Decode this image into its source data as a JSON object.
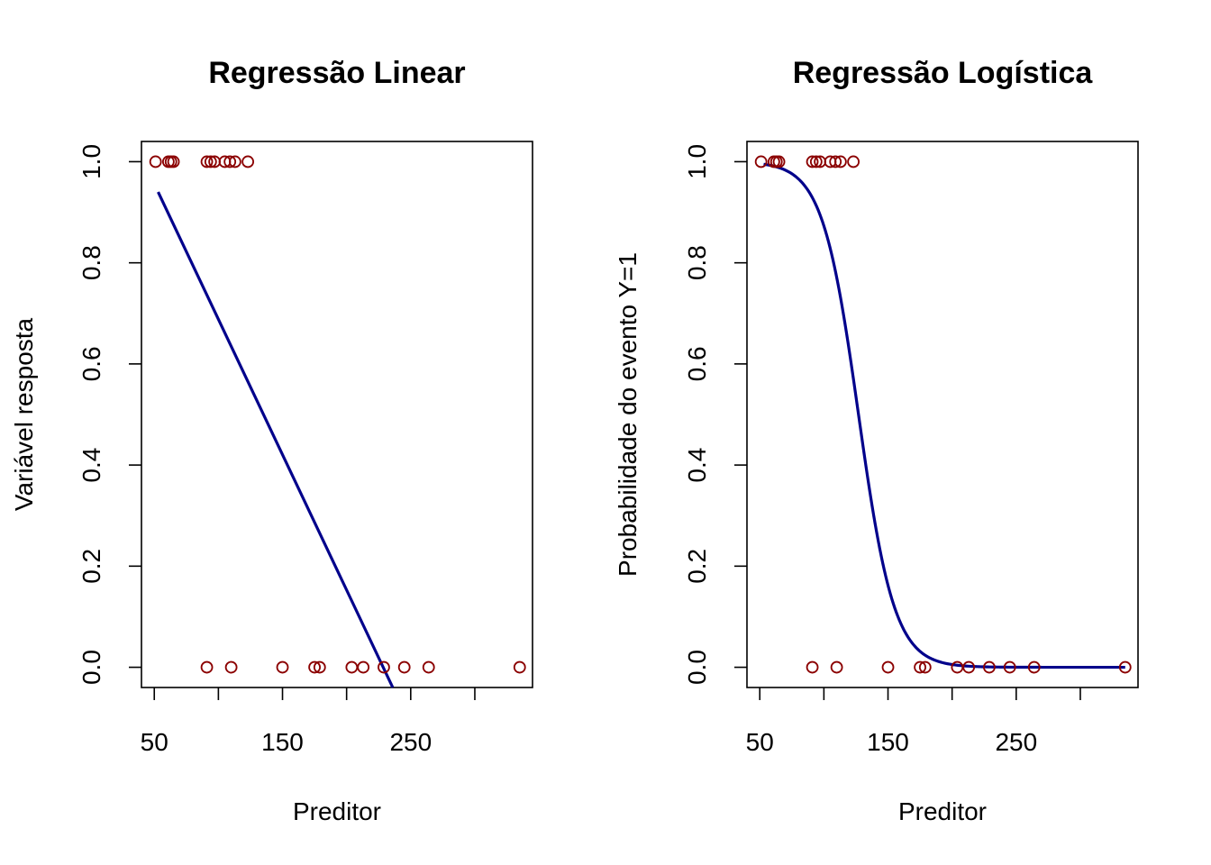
{
  "chart_data": [
    {
      "type": "scatter",
      "title": "Regressão Linear",
      "xlabel": "Preditor",
      "ylabel": "Variável resposta",
      "xlim": [
        40,
        345
      ],
      "ylim": [
        -0.04,
        1.04
      ],
      "x_ticks": [
        50,
        100,
        150,
        200,
        250,
        300
      ],
      "x_tick_labels": [
        "50",
        "",
        "150",
        "",
        "250",
        ""
      ],
      "y_ticks": [
        0.0,
        0.2,
        0.4,
        0.6,
        0.8,
        1.0
      ],
      "y_tick_labels": [
        "0.0",
        "0.2",
        "0.4",
        "0.6",
        "0.8",
        "1.0"
      ],
      "point_color": "#8b0000",
      "line_color": "#00008b",
      "points": [
        {
          "x": 51,
          "y": 1
        },
        {
          "x": 61,
          "y": 1
        },
        {
          "x": 63,
          "y": 1
        },
        {
          "x": 65,
          "y": 1
        },
        {
          "x": 91,
          "y": 1
        },
        {
          "x": 94,
          "y": 1
        },
        {
          "x": 97,
          "y": 1
        },
        {
          "x": 105,
          "y": 1
        },
        {
          "x": 109,
          "y": 1
        },
        {
          "x": 113,
          "y": 1
        },
        {
          "x": 123,
          "y": 1
        },
        {
          "x": 91,
          "y": 0
        },
        {
          "x": 110,
          "y": 0
        },
        {
          "x": 150,
          "y": 0
        },
        {
          "x": 175,
          "y": 0
        },
        {
          "x": 179,
          "y": 0
        },
        {
          "x": 204,
          "y": 0
        },
        {
          "x": 213,
          "y": 0
        },
        {
          "x": 229,
          "y": 0
        },
        {
          "x": 245,
          "y": 0
        },
        {
          "x": 264,
          "y": 0
        },
        {
          "x": 335,
          "y": 0
        }
      ],
      "fit": {
        "type": "linear",
        "x": [
          53,
          236
        ],
        "y": [
          0.94,
          -0.04
        ]
      }
    },
    {
      "type": "scatter",
      "title": "Regressão Logística",
      "xlabel": "Preditor",
      "ylabel": "Probabilidade do evento Y=1",
      "xlim": [
        40,
        345
      ],
      "ylim": [
        -0.04,
        1.04
      ],
      "x_ticks": [
        50,
        100,
        150,
        200,
        250,
        300
      ],
      "x_tick_labels": [
        "50",
        "",
        "150",
        "",
        "250",
        ""
      ],
      "y_ticks": [
        0.0,
        0.2,
        0.4,
        0.6,
        0.8,
        1.0
      ],
      "y_tick_labels": [
        "0.0",
        "0.2",
        "0.4",
        "0.6",
        "0.8",
        "1.0"
      ],
      "point_color": "#8b0000",
      "line_color": "#00008b",
      "points": [
        {
          "x": 51,
          "y": 1
        },
        {
          "x": 61,
          "y": 1
        },
        {
          "x": 63,
          "y": 1
        },
        {
          "x": 65,
          "y": 1
        },
        {
          "x": 91,
          "y": 1
        },
        {
          "x": 94,
          "y": 1
        },
        {
          "x": 97,
          "y": 1
        },
        {
          "x": 105,
          "y": 1
        },
        {
          "x": 109,
          "y": 1
        },
        {
          "x": 113,
          "y": 1
        },
        {
          "x": 123,
          "y": 1
        },
        {
          "x": 91,
          "y": 0
        },
        {
          "x": 110,
          "y": 0
        },
        {
          "x": 150,
          "y": 0
        },
        {
          "x": 175,
          "y": 0
        },
        {
          "x": 179,
          "y": 0
        },
        {
          "x": 204,
          "y": 0
        },
        {
          "x": 213,
          "y": 0
        },
        {
          "x": 229,
          "y": 0
        },
        {
          "x": 245,
          "y": 0
        },
        {
          "x": 264,
          "y": 0
        },
        {
          "x": 335,
          "y": 0
        }
      ],
      "fit": {
        "type": "logistic",
        "x_range": [
          53,
          335
        ],
        "midpoint": 127,
        "slope": 0.0714
      }
    }
  ]
}
